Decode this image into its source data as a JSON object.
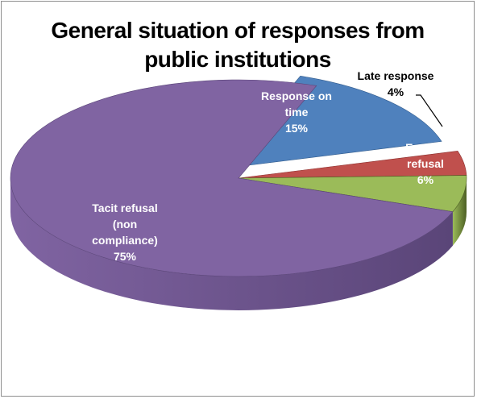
{
  "chart_data": {
    "type": "pie",
    "title_lines": [
      "General situation of responses from",
      "public institutions"
    ],
    "slices": [
      {
        "label_lines": [
          "Response on",
          "time",
          "15%"
        ],
        "value": 15,
        "color": "#4F81BD",
        "side": "#2f5a8c"
      },
      {
        "label_lines": [
          "Late response",
          "4%"
        ],
        "value": 4,
        "color": "#C0504D",
        "side": "#8a2e2c"
      },
      {
        "label_lines": [
          "Explicit",
          "refusal",
          "6%"
        ],
        "value": 6,
        "color": "#9BBB59",
        "side": "#4d5f24"
      },
      {
        "label_lines": [
          "Tacit refusal",
          "(non",
          "compliance)",
          "75%"
        ],
        "value": 75,
        "color": "#8064A2",
        "side": "#5a4578"
      }
    ],
    "exploded": "Response on time",
    "legend": "none"
  }
}
